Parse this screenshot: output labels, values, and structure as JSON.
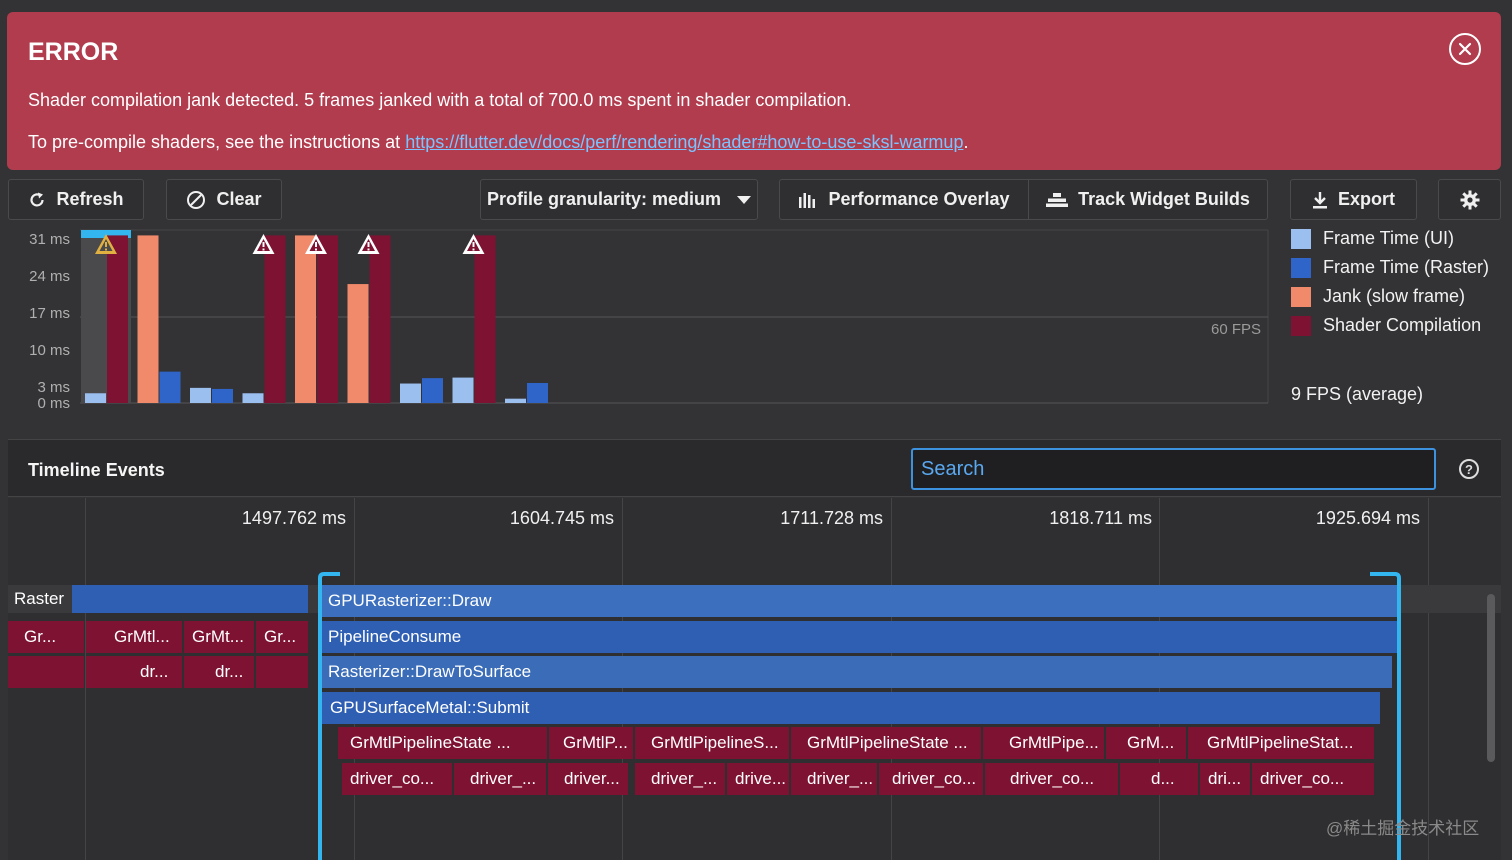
{
  "error_banner": {
    "title": "ERROR",
    "message": "Shader compilation jank detected. 5 frames janked with a total of 700.0 ms spent in shader compilation.",
    "instruction_prefix": "To pre-compile shaders, see the instructions at ",
    "link_text": "https://flutter.dev/docs/perf/rendering/shader#how-to-use-sksl-warmup",
    "instruction_suffix": ".",
    "close_icon": "close-circle-icon"
  },
  "toolbar": {
    "refresh_label": "Refresh",
    "clear_label": "Clear",
    "granularity_label": "Profile granularity: medium",
    "performance_overlay_label": "Performance Overlay",
    "track_widget_builds_label": "Track Widget Builds",
    "export_label": "Export",
    "icons": {
      "refresh": "refresh-icon",
      "clear": "block-icon",
      "dropdown": "caret-down-icon",
      "performance_overlay": "bar-chart-icon",
      "track_widget_builds": "layers-icon",
      "export": "download-icon",
      "settings": "gear-icon"
    }
  },
  "frame_chart": {
    "y_ticks": [
      "31 ms",
      "24 ms",
      "17 ms",
      "10 ms",
      "3 ms",
      "0 ms"
    ],
    "fps_line_label": "60 FPS",
    "average_fps": "9 FPS (average)",
    "legend": [
      {
        "label": "Frame Time (UI)",
        "color": "#9bc0f0"
      },
      {
        "label": "Frame Time (Raster)",
        "color": "#2f65c8"
      },
      {
        "label": "Jank (slow frame)",
        "color": "#f08a6a"
      },
      {
        "label": "Shader Compilation",
        "color": "#7e1232"
      }
    ]
  },
  "chart_data": {
    "type": "bar",
    "ylabel": "",
    "ylim": [
      0,
      32
    ],
    "y_tick_values": [
      31,
      24,
      17,
      10,
      3,
      0
    ],
    "reference_line": {
      "label": "60 FPS",
      "value": 16.7
    },
    "frames": [
      {
        "ui": 1.8,
        "raster": 31,
        "raster_kind": "shader",
        "selected": true,
        "warning": true
      },
      {
        "ui": 31,
        "ui_kind": "jank",
        "raster": 5.8
      },
      {
        "ui": 2.8,
        "raster": 2.6
      },
      {
        "ui": 1.8,
        "raster": 31,
        "raster_kind": "shader",
        "warning": true
      },
      {
        "ui": 31,
        "ui_kind": "jank",
        "raster": 31,
        "raster_kind": "shader",
        "warning": true
      },
      {
        "ui": 22,
        "ui_kind": "jank",
        "raster": 31,
        "raster_kind": "shader",
        "warning": true
      },
      {
        "ui": 3.6,
        "raster": 4.6
      },
      {
        "ui": 4.7,
        "raster": 31,
        "raster_kind": "shader",
        "warning": true
      },
      {
        "ui": 0.8,
        "raster": 3.7
      }
    ]
  },
  "timeline": {
    "title": "Timeline Events",
    "search_placeholder": "Search",
    "help_icon": "help-circle-icon",
    "timestamps": [
      "1497.762 ms",
      "1604.745 ms",
      "1711.728 ms",
      "1818.711 ms",
      "1925.694 ms"
    ],
    "lane_label": "Raster",
    "left_events_row1": [
      "Gr...",
      "GrMtl...",
      "GrMt...",
      "Gr..."
    ],
    "left_events_row2": [
      "dr...",
      "dr..."
    ],
    "main_events": [
      "GPURasterizer::Draw",
      "PipelineConsume",
      "Rasterizer::DrawToSurface",
      "GPUSurfaceMetal::Submit"
    ],
    "pipeline_events": [
      "GrMtlPipelineState ...",
      "GrMtlP...",
      "GrMtlPipelineS...",
      "GrMtlPipelineState ...",
      "GrMtlPipe...",
      "GrM...",
      "GrMtlPipelineStat..."
    ],
    "driver_events": [
      "driver_co...",
      "driver_...",
      "driver...",
      "driver_...",
      "drive...",
      "driver_...",
      "driver_co...",
      "driver_co...",
      "d...",
      "dri...",
      "driver_co..."
    ]
  },
  "watermark": "@稀土掘金技术社区"
}
